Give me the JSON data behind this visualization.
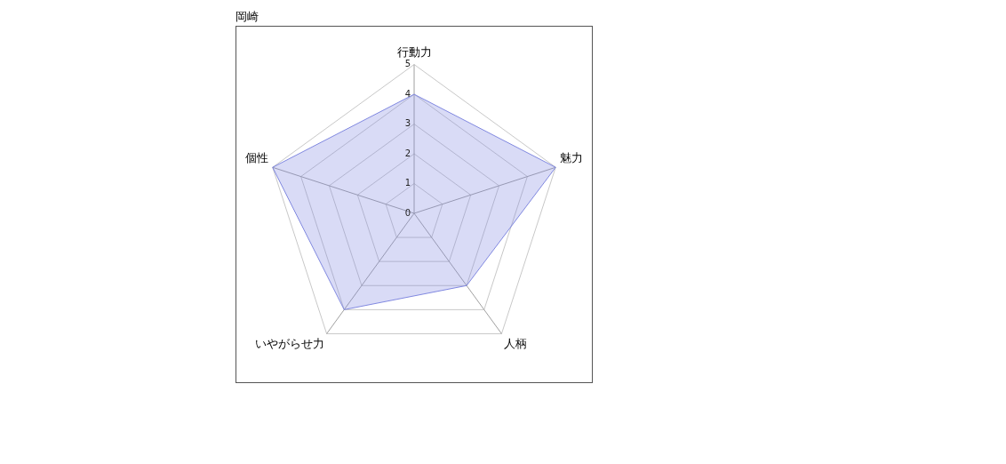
{
  "chart_data": {
    "type": "radar",
    "title": "岡崎",
    "categories": [
      "行動力",
      "魅力",
      "人柄",
      "いやがらせ力",
      "個性"
    ],
    "series": [
      {
        "color": "#8088e0",
        "values": [
          4,
          5,
          3,
          4,
          5
        ]
      }
    ],
    "ylim": [
      0,
      5
    ],
    "yticks": [
      0,
      1,
      2,
      3,
      4,
      5
    ],
    "grid": true,
    "legend": false,
    "marker": "none"
  }
}
